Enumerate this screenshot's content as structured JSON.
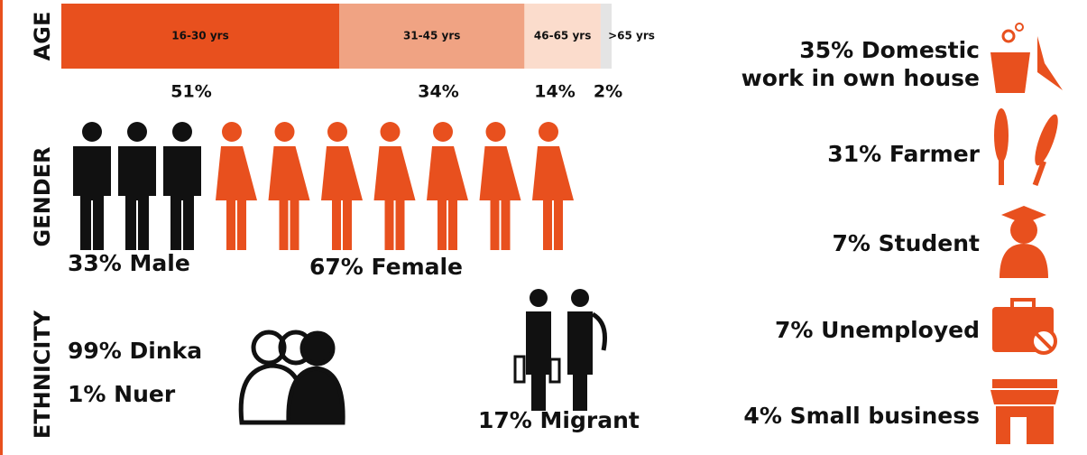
{
  "age": {
    "title": "AGE",
    "categories": [
      "16-30 yrs",
      "31-45 yrs",
      "46-65 yrs",
      ">65 yrs"
    ],
    "values": [
      51,
      34,
      14,
      2
    ],
    "value_labels": [
      "51%",
      "34%",
      "14%",
      "2%"
    ],
    "colors": [
      "#e8501e",
      "#f0a383",
      "#fbdccc",
      "#e4e4e4"
    ]
  },
  "gender": {
    "title": "GENDER",
    "male_label": "33% Male",
    "female_label": "67% Female"
  },
  "ethnicity": {
    "title": "ETHNICITY",
    "items": [
      "99% Dinka",
      "1% Nuer"
    ],
    "migrant": "17% Migrant"
  },
  "occupations": [
    {
      "lines": [
        "35% Domestic",
        "work in own house"
      ]
    },
    {
      "lines": [
        "31% Farmer"
      ]
    },
    {
      "lines": [
        "7% Student"
      ]
    },
    {
      "lines": [
        "7% Unemployed"
      ]
    },
    {
      "lines": [
        "4% Small business"
      ]
    }
  ]
}
